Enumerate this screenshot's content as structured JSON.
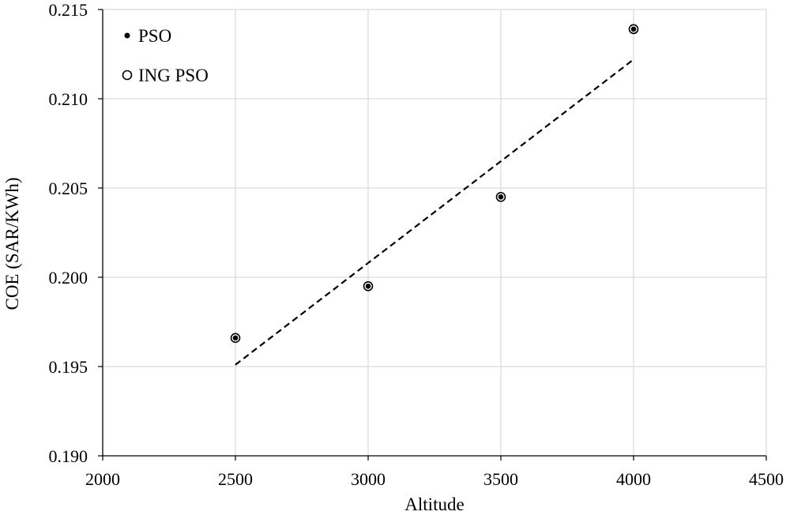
{
  "chart_data": {
    "type": "scatter",
    "title": "",
    "xlabel": "Altitude",
    "ylabel": "COE (SAR/KWh)",
    "xlim": [
      2000,
      4500
    ],
    "ylim": [
      0.19,
      0.215
    ],
    "x_ticks": [
      "2000",
      "2500",
      "3000",
      "3500",
      "4000",
      "4500"
    ],
    "y_ticks": [
      "0.190",
      "0.195",
      "0.200",
      "0.205",
      "0.210",
      "0.215"
    ],
    "grid": true,
    "legend_position": "top-left",
    "series": [
      {
        "name": "PSO",
        "marker": "filled-dot",
        "x": [
          2500,
          3000,
          3500,
          4000
        ],
        "y": [
          0.1966,
          0.1995,
          0.2045,
          0.2139
        ]
      },
      {
        "name": "ING PSO",
        "marker": "open-circle",
        "x": [
          2500,
          3000,
          3500,
          4000
        ],
        "y": [
          0.1966,
          0.1995,
          0.2045,
          0.2139
        ]
      }
    ],
    "trendline": {
      "style": "dashed",
      "x": [
        2500,
        4000
      ],
      "y": [
        0.1951,
        0.2122
      ]
    },
    "colors": {
      "marker": "#000000",
      "grid": "#d9d9d9",
      "axis": "#000000"
    }
  }
}
